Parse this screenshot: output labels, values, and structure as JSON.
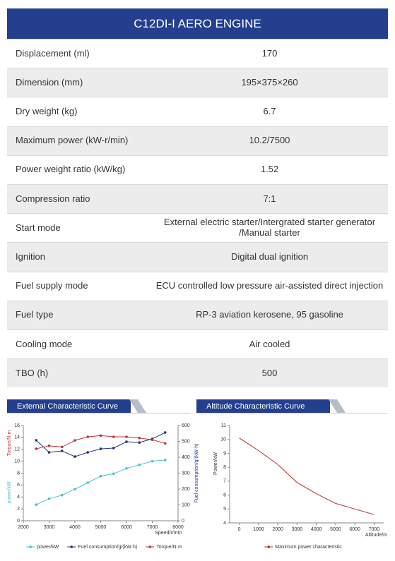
{
  "table": {
    "title": "C12DI-I AERO ENGINE",
    "rows": [
      [
        "Displacement (ml)",
        "170"
      ],
      [
        "Dimension (mm)",
        "195×375×260"
      ],
      [
        "Dry weight (kg)",
        "6.7"
      ],
      [
        "Maximum power (kW-r/min)",
        "10.2/7500"
      ],
      [
        "Power weight ratio (kW/kg)",
        "1.52"
      ],
      [
        "Compression ratio",
        "7:1"
      ],
      [
        "Start mode",
        "External electric starter/Intergrated starter generator /Manual starter"
      ],
      [
        "Ignition",
        "Digital dual ignition"
      ],
      [
        "Fuel supply mode",
        "ECU controlled low pressure air-assisted direct injection"
      ],
      [
        "Fuel type",
        "RP-3 aviation kerosene, 95 gasoline"
      ],
      [
        "Cooling mode",
        "Air cooled"
      ],
      [
        "TBO (h)",
        "500"
      ]
    ]
  },
  "chart_data": [
    {
      "type": "line",
      "title": "External Characteristic Curve",
      "x": [
        2500,
        3000,
        3500,
        4000,
        4500,
        5000,
        5500,
        6000,
        6500,
        7000,
        7500
      ],
      "xlim": [
        2000,
        8000
      ],
      "xticks": [
        2000,
        3000,
        4000,
        5000,
        6000,
        7000,
        8000
      ],
      "ylim": [
        0,
        16
      ],
      "yticks": [
        0,
        2,
        4,
        6,
        8,
        10,
        12,
        14,
        16
      ],
      "y2lim": [
        0,
        600
      ],
      "y2ticks": [
        0,
        100,
        200,
        300,
        400,
        500,
        600
      ],
      "xlabel": "Speed/r/min",
      "ylabels": [
        {
          "text": "Torque/N·m",
          "color": "#c0313a"
        },
        {
          "text": "power/kW",
          "color": "#45c3c9"
        }
      ],
      "y2label": "Fuel consumption/g/(kW·h)",
      "y2label_color": "#24357a",
      "markers": true,
      "series": [
        {
          "name": "power/kW",
          "color": "#45c3c9",
          "values": [
            2.7,
            3.7,
            4.3,
            5.3,
            6.4,
            7.5,
            7.9,
            8.8,
            9.4,
            10.0,
            10.2
          ]
        },
        {
          "name": "Fuel consumption/g/(kW·h)",
          "color": "#24357a",
          "axis": "y2",
          "values": [
            507,
            431,
            440,
            404,
            431,
            453,
            458,
            498,
            493,
            516,
            556
          ]
        },
        {
          "name": "Torque/N·m",
          "color": "#c0313a",
          "values": [
            12.1,
            12.6,
            12.4,
            13.5,
            14.1,
            14.3,
            14.1,
            14.1,
            13.9,
            13.6,
            13.0
          ]
        }
      ]
    },
    {
      "type": "line",
      "title": "Altitude Characteristic Curve",
      "x": [
        0,
        1000,
        2000,
        3000,
        4000,
        5000,
        6000,
        7000
      ],
      "xlim": [
        -500,
        7500
      ],
      "xticks": [
        0,
        1000,
        2000,
        3000,
        4000,
        5000,
        6000,
        7000
      ],
      "ylim": [
        4,
        11
      ],
      "yticks": [
        4,
        5,
        6,
        7,
        8,
        9,
        10,
        11
      ],
      "xlabel": "Altitude/m",
      "ylabels": [
        {
          "text": "Power/kW",
          "color": "#333333"
        }
      ],
      "markers": false,
      "series": [
        {
          "name": "Maximum power characteristic",
          "color": "#b03030",
          "values": [
            10.1,
            9.2,
            8.2,
            6.9,
            6.1,
            5.4,
            5.0,
            4.6
          ]
        }
      ]
    }
  ]
}
